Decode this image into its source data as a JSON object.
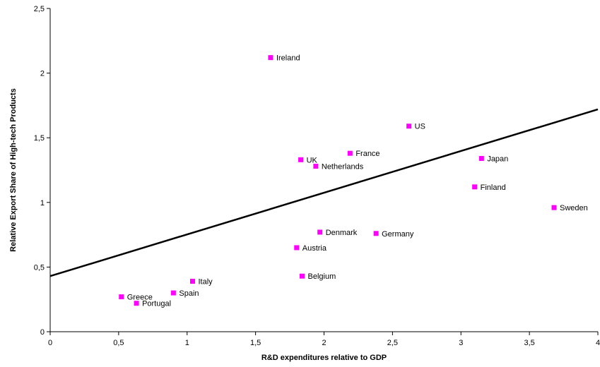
{
  "chart_data": {
    "type": "scatter",
    "xlabel": "R&D expenditures relative to GDP",
    "ylabel": "Relative Export Share of High-tech Products",
    "xlim": [
      0,
      4
    ],
    "ylim": [
      0,
      2.5
    ],
    "x_ticks": [
      "0",
      "0,5",
      "1",
      "1,5",
      "2",
      "2,5",
      "3",
      "3,5",
      "4"
    ],
    "x_tick_values": [
      0,
      0.5,
      1,
      1.5,
      2,
      2.5,
      3,
      3.5,
      4
    ],
    "y_ticks": [
      "0",
      "0,5",
      "1",
      "1,5",
      "2",
      "2,5"
    ],
    "y_tick_values": [
      0,
      0.5,
      1,
      1.5,
      2,
      2.5
    ],
    "grid": false,
    "marker_color": "#ff00ff",
    "points": [
      {
        "label": "Ireland",
        "x": 1.61,
        "y": 2.12
      },
      {
        "label": "US",
        "x": 2.62,
        "y": 1.59
      },
      {
        "label": "UK",
        "x": 1.83,
        "y": 1.33
      },
      {
        "label": "France",
        "x": 2.19,
        "y": 1.38
      },
      {
        "label": "Netherlands",
        "x": 1.94,
        "y": 1.28
      },
      {
        "label": "Japan",
        "x": 3.15,
        "y": 1.34
      },
      {
        "label": "Finland",
        "x": 3.1,
        "y": 1.12
      },
      {
        "label": "Sweden",
        "x": 3.68,
        "y": 0.96
      },
      {
        "label": "Denmark",
        "x": 1.97,
        "y": 0.77
      },
      {
        "label": "Germany",
        "x": 2.38,
        "y": 0.76
      },
      {
        "label": "Austria",
        "x": 1.8,
        "y": 0.65
      },
      {
        "label": "Belgium",
        "x": 1.84,
        "y": 0.43
      },
      {
        "label": "Italy",
        "x": 1.04,
        "y": 0.39
      },
      {
        "label": "Spain",
        "x": 0.9,
        "y": 0.3
      },
      {
        "label": "Greece",
        "x": 0.52,
        "y": 0.27
      },
      {
        "label": "Portugal",
        "x": 0.63,
        "y": 0.22
      }
    ],
    "trendline": {
      "x": [
        0,
        4
      ],
      "y": [
        0.43,
        1.72
      ]
    }
  }
}
